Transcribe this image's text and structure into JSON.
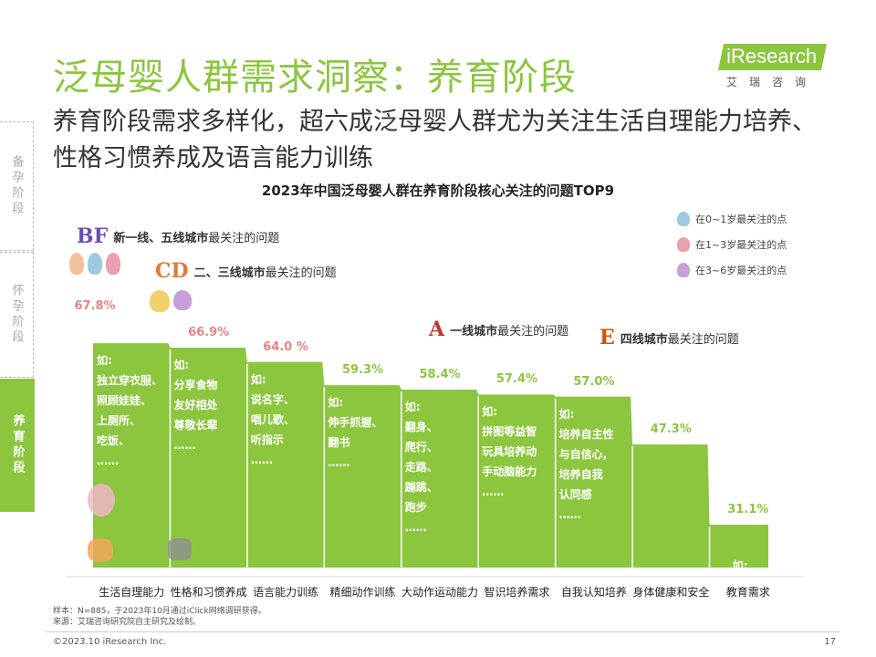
{
  "header": {
    "title": "泛母婴人群需求洞察：养育阶段",
    "subtitle": "养育阶段需求多样化，超六成泛母婴人群尤为关注生活自理能力培养、性格习惯养成及语言能力训练",
    "logo_text": "iResearch",
    "logo_sub": "艾瑞咨询"
  },
  "sidebar": {
    "tabs": [
      {
        "label": "备孕阶段"
      },
      {
        "label": "怀孕阶段"
      },
      {
        "label": "养育阶段"
      }
    ]
  },
  "legend": {
    "items": [
      {
        "label": "在0~1岁最关注的点",
        "color": "#9ecae1"
      },
      {
        "label": "在1~3岁最关注的点",
        "color": "#e7a1b0"
      },
      {
        "label": "在3~6岁最关注的点",
        "color": "#c7a0d8"
      }
    ]
  },
  "notes": [
    {
      "badge": "BF",
      "bold": "新一线、五线城市",
      "text": "最关注的问题",
      "color": "#6a4fb3"
    },
    {
      "badge": "CD",
      "bold": "二、三线城市",
      "text": "最关注的问题",
      "color": "#e07b39"
    },
    {
      "badge": "A",
      "bold": "一线城市",
      "text": "最关注的问题",
      "color": "#c0392b"
    },
    {
      "badge": "E",
      "bold": "四线城市",
      "text": "最关注的问题",
      "color": "#d35400"
    }
  ],
  "chart_data": {
    "type": "area",
    "title": "2023年中国泛母婴人群在养育阶段核心关注的问题TOP9",
    "categories": [
      "生活自理能力",
      "性格和习惯养成",
      "语言能力训练",
      "精细动作训练",
      "大动作运动能力",
      "智识培养需求",
      "自我认知培养",
      "身体健康和安全",
      "教育需求"
    ],
    "values": [
      67.8,
      66.9,
      64.0,
      59.3,
      58.4,
      57.4,
      57.0,
      47.3,
      31.1
    ],
    "value_labels": [
      "67.8%",
      "66.9%",
      "64.0 %",
      "59.3%",
      "58.4%",
      "57.4%",
      "57.0%",
      "47.3%",
      "31.1%"
    ],
    "label_colors": [
      "#e8847f",
      "#e8847f",
      "#e8847f",
      "#8cc63f",
      "#8cc63f",
      "#8cc63f",
      "#8cc63f",
      "#8cc63f",
      "#8cc63f"
    ],
    "examples": [
      "如:\n独立穿衣服、\n照顾娃娃、\n上厕所、\n吃饭、\n……",
      "如:\n分享食物\n友好相处\n尊敬长辈\n……",
      "如:\n说名字、\n唱儿歌、\n听指示\n……",
      "如:\n伸手抓握、\n翻书\n……",
      "如:\n翻身、\n爬行、\n走路、\n蹦跳、\n跑步\n……",
      "如:\n拼图等益智\n玩具培养动\n手动脑能力\n……",
      "如:\n培养自主性\n与自信心,\n培养自我\n认同感\n……",
      "",
      "如:\n中英学习\n学前教育\n才艺培养"
    ],
    "fill_color": "#8cc63f",
    "ylim": [
      0,
      100
    ]
  },
  "footer": {
    "note": "样本：N=885，于2023年10月通过iClick网络调研获得。\n来源：艾瑞咨询研究院自主研究及绘制。",
    "copyright": "©2023.10 iResearch Inc.",
    "page": "17"
  }
}
